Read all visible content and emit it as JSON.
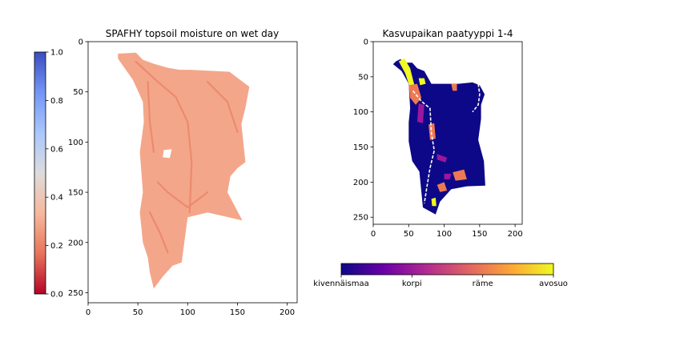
{
  "chart_data": [
    {
      "type": "heatmap",
      "title": "SPAFHY topsoil moisture on wet day",
      "xlabel": "",
      "ylabel": "",
      "xlim": [
        0,
        210
      ],
      "ylim": [
        260,
        0
      ],
      "x_ticks": [
        "0",
        "50",
        "100",
        "150",
        "200"
      ],
      "y_ticks": [
        "0",
        "50",
        "100",
        "150",
        "200",
        "250"
      ],
      "colormap": "coolwarm_r",
      "dominant_color": "#f4a68a",
      "stream_color": "#ec8a6e",
      "colorbar": {
        "orientation": "vertical",
        "position": "left",
        "range": [
          0.0,
          1.0
        ],
        "ticks": [
          "0.0",
          "0.2",
          "0.4",
          "0.6",
          "0.8",
          "1.0"
        ],
        "stops": [
          "#b40426",
          "#e7745b",
          "#f7b89c",
          "#dddcdc",
          "#aac7fd",
          "#7396f5",
          "#3b4cc0"
        ]
      },
      "region": {
        "outline": [
          [
            30,
            12
          ],
          [
            48,
            11
          ],
          [
            55,
            18
          ],
          [
            66,
            22
          ],
          [
            80,
            26
          ],
          [
            92,
            28
          ],
          [
            102,
            28
          ],
          [
            142,
            30
          ],
          [
            162,
            45
          ],
          [
            158,
            66
          ],
          [
            154,
            82
          ],
          [
            158,
            120
          ],
          [
            150,
            126
          ],
          [
            143,
            134
          ],
          [
            140,
            150
          ],
          [
            155,
            178
          ],
          [
            120,
            170
          ],
          [
            100,
            175
          ],
          [
            94,
            220
          ],
          [
            85,
            223
          ],
          [
            75,
            234
          ],
          [
            66,
            246
          ],
          [
            62,
            230
          ],
          [
            60,
            215
          ],
          [
            55,
            200
          ],
          [
            52,
            170
          ],
          [
            55,
            150
          ],
          [
            52,
            110
          ],
          [
            56,
            80
          ],
          [
            55,
            60
          ],
          [
            45,
            38
          ],
          [
            30,
            17
          ]
        ],
        "hole": [
          [
            76,
            108
          ],
          [
            84,
            107
          ],
          [
            82,
            116
          ],
          [
            75,
            115
          ]
        ]
      }
    },
    {
      "type": "heatmap",
      "title": "Kasvupaikan paatyyppi 1-4",
      "xlabel": "",
      "ylabel": "",
      "xlim": [
        0,
        210
      ],
      "ylim": [
        260,
        0
      ],
      "x_ticks": [
        "0",
        "50",
        "100",
        "150",
        "200"
      ],
      "y_ticks": [
        "0",
        "50",
        "100",
        "150",
        "200",
        "250"
      ],
      "colormap": "plasma",
      "classes": [
        "kivennäismaa",
        "korpi",
        "räme",
        "avosuo"
      ],
      "class_colors": [
        "#0d0887",
        "#9c179e",
        "#ed7953",
        "#f0f921"
      ],
      "colorbar": {
        "orientation": "horizontal",
        "position": "bottom",
        "stops": [
          "#0d0887",
          "#6a00a8",
          "#b12a90",
          "#e16462",
          "#fca636",
          "#f0f921"
        ]
      },
      "region": {
        "outline": [
          [
            32,
            28
          ],
          [
            38,
            25
          ],
          [
            46,
            30
          ],
          [
            55,
            30
          ],
          [
            62,
            38
          ],
          [
            72,
            42
          ],
          [
            82,
            60
          ],
          [
            100,
            60
          ],
          [
            120,
            60
          ],
          [
            140,
            58
          ],
          [
            150,
            62
          ],
          [
            157,
            75
          ],
          [
            152,
            90
          ],
          [
            152,
            110
          ],
          [
            148,
            140
          ],
          [
            156,
            170
          ],
          [
            158,
            205
          ],
          [
            132,
            206
          ],
          [
            110,
            210
          ],
          [
            94,
            228
          ],
          [
            88,
            246
          ],
          [
            70,
            236
          ],
          [
            68,
            215
          ],
          [
            65,
            185
          ],
          [
            55,
            170
          ],
          [
            50,
            142
          ],
          [
            50,
            115
          ],
          [
            52,
            95
          ],
          [
            50,
            60
          ],
          [
            40,
            42
          ],
          [
            28,
            32
          ]
        ]
      },
      "patches": [
        {
          "cls": 3,
          "pts": [
            [
              36,
              28
            ],
            [
              44,
              24
            ],
            [
              52,
              38
            ],
            [
              58,
              62
            ],
            [
              52,
              66
            ],
            [
              45,
              45
            ]
          ]
        },
        {
          "cls": 3,
          "pts": [
            [
              64,
              52
            ],
            [
              72,
              52
            ],
            [
              74,
              60
            ],
            [
              66,
              62
            ]
          ]
        },
        {
          "cls": 3,
          "pts": [
            [
              82,
              224
            ],
            [
              88,
              222
            ],
            [
              89,
              234
            ],
            [
              83,
              234
            ]
          ]
        },
        {
          "cls": 2,
          "pts": [
            [
              50,
              62
            ],
            [
              62,
              60
            ],
            [
              68,
              80
            ],
            [
              60,
              90
            ],
            [
              52,
              80
            ]
          ]
        },
        {
          "cls": 2,
          "pts": [
            [
              78,
              118
            ],
            [
              86,
              116
            ],
            [
              88,
              138
            ],
            [
              80,
              140
            ]
          ]
        },
        {
          "cls": 2,
          "pts": [
            [
              112,
              186
            ],
            [
              128,
              182
            ],
            [
              132,
              196
            ],
            [
              116,
              198
            ]
          ]
        },
        {
          "cls": 2,
          "pts": [
            [
              90,
              204
            ],
            [
              100,
              200
            ],
            [
              104,
              212
            ],
            [
              94,
              214
            ]
          ]
        },
        {
          "cls": 2,
          "pts": [
            [
              110,
              60
            ],
            [
              118,
              60
            ],
            [
              118,
              70
            ],
            [
              112,
              70
            ]
          ]
        },
        {
          "cls": 1,
          "pts": [
            [
              64,
              88
            ],
            [
              72,
              90
            ],
            [
              70,
              116
            ],
            [
              62,
              114
            ]
          ]
        },
        {
          "cls": 1,
          "pts": [
            [
              90,
              160
            ],
            [
              104,
              165
            ],
            [
              102,
              172
            ],
            [
              90,
              168
            ]
          ]
        },
        {
          "cls": 1,
          "pts": [
            [
              100,
              188
            ],
            [
              110,
              188
            ],
            [
              108,
              196
            ],
            [
              100,
              196
            ]
          ]
        }
      ],
      "divider": {
        "color": "#ffffff",
        "lines": [
          [
            [
              56,
              70
            ],
            [
              68,
              85
            ],
            [
              80,
              95
            ],
            [
              82,
              130
            ],
            [
              86,
              155
            ],
            [
              80,
              180
            ],
            [
              76,
              205
            ],
            [
              72,
              230
            ]
          ],
          [
            [
              148,
              60
            ],
            [
              150,
              75
            ],
            [
              148,
              90
            ],
            [
              140,
              100
            ]
          ]
        ]
      }
    }
  ]
}
